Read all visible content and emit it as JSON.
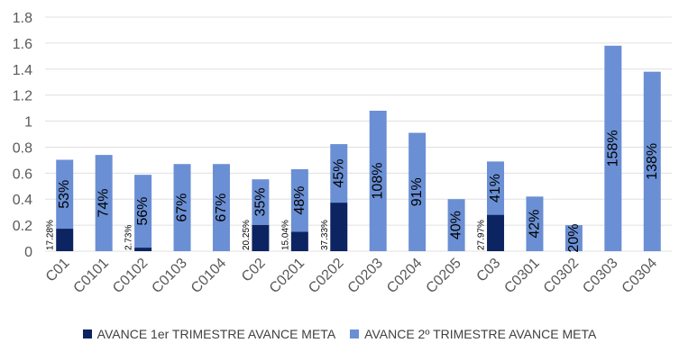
{
  "colors": {
    "series1": "#0c2461",
    "series2": "#6a8fd4",
    "axis_text": "#595959",
    "gridline": "#e0e0e0",
    "label_text": "#000000"
  },
  "chart_data": {
    "type": "bar",
    "stacked": true,
    "title": "",
    "xlabel": "",
    "ylabel": "",
    "ylim": [
      0,
      1.8
    ],
    "yticks": [
      "0",
      "0.2",
      "0.4",
      "0.6",
      "0.8",
      "1",
      "1.2",
      "1.4",
      "1.6",
      "1.8"
    ],
    "grid": true,
    "legend_position": "bottom",
    "categories": [
      "C01",
      "C0101",
      "C0102",
      "C0103",
      "C0104",
      "C02",
      "C0201",
      "C0202",
      "C0203",
      "C0204",
      "C0205",
      "C03",
      "C0301",
      "C0302",
      "C0303",
      "C0304"
    ],
    "series": [
      {
        "name": "AVANCE 1er TRIMESTRE AVANCE META",
        "values": [
          0.1728,
          0,
          0.0273,
          0,
          0,
          0.2025,
          0.1504,
          0.3733,
          0,
          0,
          0,
          0.2797,
          0,
          0,
          0,
          0
        ],
        "labels": [
          "17.28%",
          "",
          "2.73%",
          "",
          "",
          "20.25%",
          "15.04%",
          "37.33%",
          "",
          "",
          "",
          "27.97%",
          "",
          "",
          "",
          ""
        ]
      },
      {
        "name": "AVANCE 2º TRIMESTRE AVANCE META",
        "values": [
          0.53,
          0.74,
          0.56,
          0.67,
          0.67,
          0.35,
          0.48,
          0.45,
          1.08,
          0.91,
          0.4,
          0.41,
          0.42,
          0.2,
          1.58,
          1.38
        ],
        "labels": [
          "53%",
          "74%",
          "56%",
          "67%",
          "67%",
          "35%",
          "48%",
          "45%",
          "108%",
          "91%",
          "40%",
          "41%",
          "42%",
          "20%",
          "158%",
          "138%"
        ]
      }
    ]
  }
}
